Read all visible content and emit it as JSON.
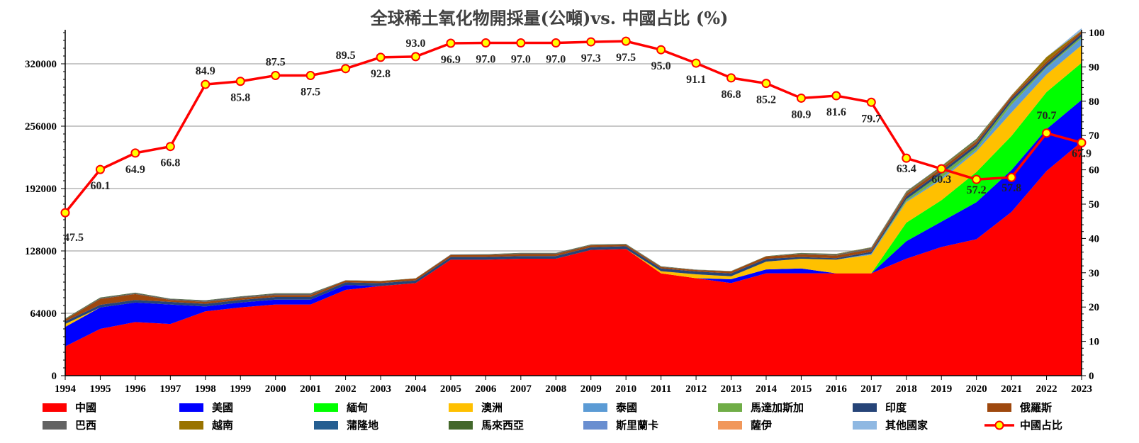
{
  "chart_data": {
    "type": "area",
    "title": "全球稀土氧化物開採量(公噸)vs. 中國占比 (%)",
    "x": [
      "1994",
      "1995",
      "1996",
      "1997",
      "1998",
      "1999",
      "2000",
      "2001",
      "2002",
      "2003",
      "2004",
      "2005",
      "2006",
      "2007",
      "2008",
      "2009",
      "2010",
      "2011",
      "2012",
      "2013",
      "2014",
      "2015",
      "2016",
      "2017",
      "2018",
      "2019",
      "2020",
      "2021",
      "2022",
      "2023"
    ],
    "y_left": {
      "min": 0,
      "max": 352000,
      "ticks": [
        0,
        64000,
        128000,
        192000,
        256000,
        320000
      ]
    },
    "y_right": {
      "min": 0,
      "max": 100,
      "ticks": [
        0,
        10,
        20,
        30,
        40,
        50,
        60,
        70,
        80,
        90,
        100
      ]
    },
    "grid": true,
    "legend_position": "bottom",
    "series": [
      {
        "name": "中國",
        "color": "#FF0000",
        "values": [
          30000,
          48000,
          55000,
          53000,
          66000,
          70000,
          73000,
          73000,
          88000,
          92000,
          95000,
          119000,
          119000,
          120000,
          120000,
          129000,
          130000,
          105000,
          100000,
          95000,
          105000,
          105000,
          105000,
          105000,
          120000,
          132000,
          140000,
          168000,
          210000,
          240000
        ]
      },
      {
        "name": "美國",
        "color": "#0000FF",
        "values": [
          20000,
          22000,
          20000,
          20000,
          5000,
          5000,
          5000,
          5000,
          5000,
          0,
          0,
          0,
          0,
          0,
          0,
          0,
          0,
          0,
          0,
          4000,
          4000,
          5000,
          0,
          0,
          18000,
          26000,
          38000,
          43000,
          43000,
          43000
        ]
      },
      {
        "name": "緬甸",
        "color": "#00FF00",
        "values": [
          0,
          0,
          0,
          0,
          0,
          0,
          0,
          0,
          0,
          0,
          0,
          0,
          0,
          0,
          0,
          0,
          0,
          0,
          0,
          0,
          0,
          0,
          0,
          0,
          19000,
          22000,
          31000,
          35000,
          38000,
          38000
        ]
      },
      {
        "name": "澳洲",
        "color": "#FFC000",
        "values": [
          3000,
          0,
          0,
          0,
          0,
          0,
          0,
          0,
          0,
          0,
          0,
          0,
          0,
          0,
          0,
          0,
          0,
          2200,
          4000,
          3000,
          8000,
          10000,
          14000,
          19000,
          21000,
          21000,
          21000,
          24000,
          18000,
          18000
        ]
      },
      {
        "name": "泰國",
        "color": "#5B9BD5",
        "values": [
          0,
          0,
          0,
          0,
          0,
          0,
          0,
          0,
          0,
          0,
          0,
          0,
          0,
          0,
          0,
          0,
          0,
          0,
          0,
          0,
          0,
          0,
          0,
          1300,
          1000,
          2000,
          2000,
          8000,
          7100,
          7100
        ]
      },
      {
        "name": "馬達加斯加",
        "color": "#70AD47",
        "values": [
          0,
          0,
          0,
          0,
          0,
          0,
          0,
          0,
          0,
          0,
          0,
          0,
          0,
          0,
          0,
          0,
          0,
          0,
          0,
          0,
          0,
          0,
          0,
          0,
          2000,
          4000,
          2800,
          3200,
          960,
          2000
        ]
      },
      {
        "name": "印度",
        "color": "#264478",
        "values": [
          2700,
          2700,
          2700,
          2700,
          2700,
          2700,
          2700,
          2700,
          2700,
          2900,
          2700,
          2700,
          2700,
          2700,
          2700,
          2700,
          2800,
          2800,
          2900,
          2900,
          2900,
          1700,
          1500,
          1800,
          2900,
          2900,
          2900,
          2900,
          2900,
          2900
        ]
      },
      {
        "name": "俄羅斯",
        "color": "#9E480E",
        "values": [
          2000,
          6000,
          6000,
          2000,
          2000,
          2000,
          2000,
          2000,
          2000,
          2000,
          2000,
          2000,
          2000,
          2000,
          2000,
          2000,
          1500,
          1500,
          1500,
          2000,
          2500,
          2800,
          2800,
          2600,
          2600,
          2700,
          2700,
          2600,
          2600,
          2600
        ]
      },
      {
        "name": "巴西",
        "color": "#636363",
        "values": [
          400,
          1000,
          1000,
          1000,
          1400,
          1400,
          1400,
          1400,
          0,
          0,
          0,
          700,
          700,
          1000,
          1000,
          600,
          550,
          500,
          300,
          300,
          0,
          900,
          1100,
          1700,
          1100,
          700,
          600,
          500,
          80,
          80
        ]
      },
      {
        "name": "越南",
        "color": "#997300",
        "values": [
          0,
          0,
          0,
          0,
          0,
          0,
          0,
          0,
          0,
          0,
          0,
          0,
          0,
          0,
          0,
          0,
          0,
          0,
          0,
          0,
          0,
          0,
          300,
          200,
          900,
          1300,
          700,
          400,
          4300,
          300
        ]
      },
      {
        "name": "蒲隆地",
        "color": "#255E91",
        "values": [
          0,
          0,
          0,
          0,
          0,
          0,
          0,
          0,
          0,
          0,
          0,
          0,
          0,
          0,
          0,
          0,
          0,
          0,
          0,
          0,
          0,
          0,
          0,
          0,
          600,
          500,
          300,
          0,
          0,
          0
        ]
      },
      {
        "name": "馬來西亞",
        "color": "#43682B",
        "values": [
          500,
          500,
          500,
          300,
          300,
          300,
          400,
          400,
          200,
          300,
          250,
          0,
          200,
          300,
          300,
          350,
          300,
          300,
          100,
          200,
          240,
          500,
          300,
          200,
          100,
          100,
          1000,
          100,
          100,
          100
        ]
      },
      {
        "name": "斯里蘭卡",
        "color": "#698ED0",
        "values": [
          0,
          0,
          0,
          0,
          0,
          0,
          0,
          0,
          0,
          0,
          0,
          0,
          0,
          0,
          0,
          0,
          0,
          0,
          0,
          0,
          0,
          0,
          0,
          0,
          0,
          0,
          0,
          0,
          0,
          0
        ]
      },
      {
        "name": "薩伊",
        "color": "#F1975A",
        "values": [
          0,
          0,
          0,
          0,
          0,
          0,
          0,
          0,
          0,
          0,
          0,
          0,
          0,
          0,
          0,
          0,
          0,
          0,
          0,
          0,
          0,
          0,
          0,
          0,
          0,
          0,
          0,
          0,
          0,
          0
        ]
      },
      {
        "name": "其他國家",
        "color": "#8FB8E2",
        "values": [
          0,
          0,
          0,
          0,
          0,
          0,
          0,
          0,
          0,
          0,
          0,
          0,
          0,
          0,
          0,
          0,
          0,
          0,
          0,
          0,
          0,
          0,
          0,
          0,
          0,
          0,
          0,
          0,
          0,
          2500
        ]
      }
    ],
    "line": {
      "name": "中國占比",
      "axis": "right",
      "color": "#FF0000",
      "marker_fill": "#FFFF00",
      "values": [
        47.5,
        60.1,
        64.9,
        66.8,
        84.9,
        85.8,
        87.5,
        87.5,
        89.5,
        92.8,
        93.0,
        96.9,
        97.0,
        97.0,
        97.0,
        97.3,
        97.5,
        95.0,
        91.1,
        86.8,
        85.2,
        80.9,
        81.6,
        79.7,
        63.4,
        60.3,
        57.2,
        57.8,
        70.7,
        67.9
      ],
      "labels": [
        "47.5",
        "60.1",
        "64.9",
        "66.8",
        "84.9",
        "85.8",
        "87.5",
        "87.5",
        "89.5",
        "92.8",
        "93.0",
        "96.9",
        "97.0",
        "97.0",
        "97.0",
        "97.3",
        "97.5",
        "95.0",
        "91.1",
        "86.8",
        "85.2",
        "80.9",
        "81.6",
        "79.7",
        "63.4",
        "60.3",
        "57.2",
        "57.8",
        "70.7",
        "67.9"
      ]
    }
  }
}
